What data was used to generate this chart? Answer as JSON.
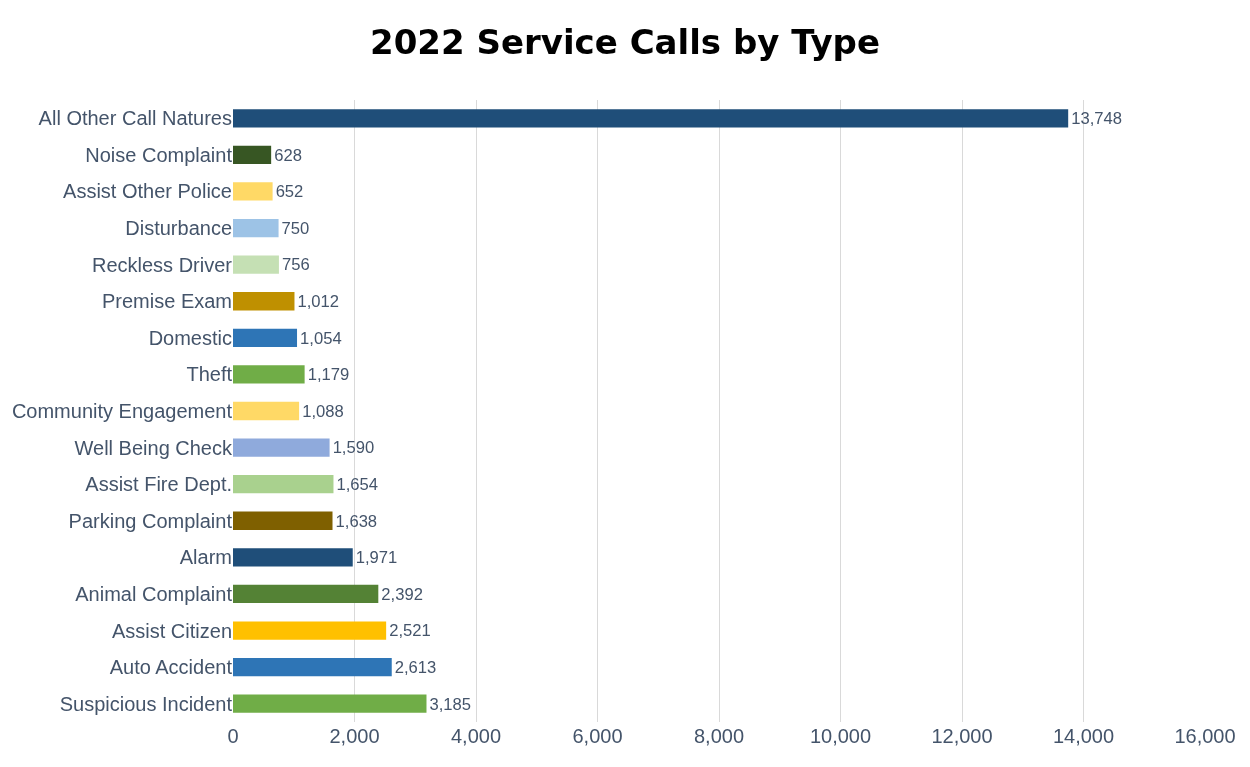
{
  "chart_data": {
    "type": "bar",
    "orientation": "horizontal",
    "title": "2022 Service Calls by Type",
    "categories": [
      "All Other Call Natures",
      "Noise Complaint",
      "Assist Other Police",
      "Disturbance",
      "Reckless Driver",
      "Premise Exam",
      "Domestic",
      "Theft",
      "Community Engagement",
      "Well Being Check",
      "Assist Fire Dept.",
      "Parking Complaint",
      "Alarm",
      "Animal Complaint",
      "Assist Citizen",
      "Auto Accident",
      "Suspicious Incident"
    ],
    "values": [
      13748,
      628,
      652,
      750,
      756,
      1012,
      1054,
      1179,
      1088,
      1590,
      1654,
      1638,
      1971,
      2392,
      2521,
      2613,
      3185
    ],
    "value_labels": [
      "13,748",
      "628",
      "652",
      "750",
      "756",
      "1,012",
      "1,054",
      "1,179",
      "1,088",
      "1,590",
      "1,654",
      "1,638",
      "1,971",
      "2,392",
      "2,521",
      "2,613",
      "3,185"
    ],
    "colors": [
      "#1f4e79",
      "#375623",
      "#ffd966",
      "#9dc3e6",
      "#c5e0b4",
      "#bf9000",
      "#2e75b6",
      "#70ad47",
      "#ffd966",
      "#8faadc",
      "#a9d18e",
      "#7f6000",
      "#1f4e79",
      "#548235",
      "#ffc000",
      "#2e75b6",
      "#70ad47"
    ],
    "xlim": [
      0,
      16000
    ],
    "xticks": [
      0,
      {
        "value": 2000,
        "label": "2,000"
      },
      {
        "value": 4000,
        "label": "4,000"
      },
      {
        "value": 6000,
        "label": "6,000"
      },
      {
        "value": 8000,
        "label": "8,000"
      },
      {
        "value": 10000,
        "label": "10,000"
      },
      {
        "value": 12000,
        "label": "12,000"
      },
      {
        "value": 14000,
        "label": "14,000"
      },
      {
        "value": 16000,
        "label": "16,000"
      }
    ],
    "grid": "x",
    "legend": false
  }
}
